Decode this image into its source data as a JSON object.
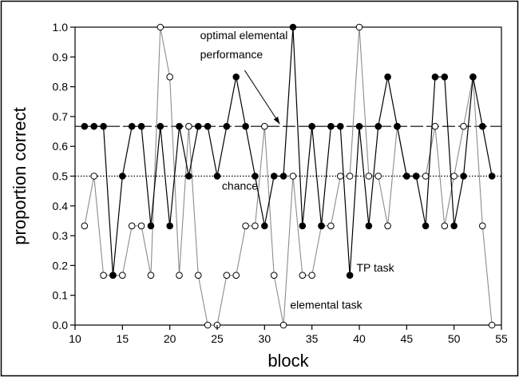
{
  "chart_data": {
    "type": "line",
    "xlabel": "block",
    "ylabel": "proportion correct",
    "xlim": [
      10,
      55
    ],
    "ylim": [
      0.0,
      1.0
    ],
    "xticks": [
      10,
      15,
      20,
      25,
      30,
      35,
      40,
      45,
      50,
      55
    ],
    "yticks": [
      0.0,
      0.1,
      0.2,
      0.3,
      0.4,
      0.5,
      0.6,
      0.7,
      0.8,
      0.9,
      1.0
    ],
    "xtick_labels": [
      "10",
      "15",
      "20",
      "25",
      "30",
      "35",
      "40",
      "45",
      "50",
      "55"
    ],
    "ytick_labels": [
      "0.0",
      "0.1",
      "0.2",
      "0.3",
      "0.4",
      "0.5",
      "0.6",
      "0.7",
      "0.8",
      "0.9",
      "1.0"
    ],
    "grid": false,
    "series": [
      {
        "name": "elemental task",
        "marker": "open-circle",
        "color": "#8c8c8c",
        "x": [
          11,
          12,
          13,
          14,
          15,
          16,
          17,
          18,
          19,
          20,
          21,
          22,
          23,
          24,
          25,
          26,
          27,
          28,
          29,
          30,
          31,
          32,
          33,
          34,
          35,
          36,
          37,
          38,
          39,
          40,
          41,
          42,
          43,
          44,
          45,
          46,
          47,
          48,
          49,
          50,
          51,
          52,
          53,
          54
        ],
        "y": [
          0.333,
          0.5,
          0.167,
          0.167,
          0.167,
          0.333,
          0.333,
          0.167,
          1.0,
          0.833,
          0.167,
          0.667,
          0.167,
          0.0,
          0.0,
          0.167,
          0.167,
          0.333,
          0.333,
          0.667,
          0.167,
          0.0,
          0.5,
          0.167,
          0.167,
          0.333,
          0.333,
          0.5,
          0.5,
          1.0,
          0.5,
          0.5,
          0.333,
          0.667,
          0.5,
          0.5,
          0.5,
          0.667,
          0.333,
          0.5,
          0.667,
          0.833,
          0.333,
          0.0
        ]
      },
      {
        "name": "TP task",
        "marker": "filled-circle",
        "color": "#000000",
        "x": [
          11,
          12,
          13,
          14,
          15,
          16,
          17,
          18,
          19,
          20,
          21,
          22,
          23,
          24,
          25,
          26,
          27,
          28,
          29,
          30,
          31,
          32,
          33,
          34,
          35,
          36,
          37,
          38,
          39,
          40,
          41,
          42,
          43,
          44,
          45,
          46,
          47,
          48,
          49,
          50,
          51,
          52,
          53,
          54
        ],
        "y": [
          0.667,
          0.667,
          0.667,
          0.167,
          0.5,
          0.667,
          0.667,
          0.333,
          0.667,
          0.333,
          0.667,
          0.5,
          0.667,
          0.667,
          0.5,
          0.667,
          0.833,
          0.667,
          0.5,
          0.333,
          0.5,
          0.5,
          1.0,
          0.333,
          0.667,
          0.333,
          0.667,
          0.667,
          0.167,
          0.667,
          0.333,
          0.667,
          0.833,
          0.667,
          0.5,
          0.5,
          0.333,
          0.833,
          0.833,
          0.333,
          0.5,
          0.833,
          0.667,
          0.5
        ]
      }
    ],
    "reference_lines": [
      {
        "label": "optimal elemental performance",
        "y": 0.667,
        "style": "dashed"
      },
      {
        "label": "chance",
        "y": 0.5,
        "style": "dotted"
      }
    ],
    "annotations": [
      {
        "text": "optimal elemental",
        "x": 23.2,
        "y": 0.96
      },
      {
        "text": "performance",
        "x": 23.2,
        "y": 0.895
      },
      {
        "text": "chance",
        "x": 25.5,
        "y": 0.455
      },
      {
        "text": "TP task",
        "x": 39.7,
        "y": 0.18
      },
      {
        "text": "elemental task",
        "x": 32.7,
        "y": 0.055
      }
    ],
    "arrow": {
      "from": [
        27.9,
        0.855
      ],
      "to": [
        31.6,
        0.675
      ]
    }
  }
}
